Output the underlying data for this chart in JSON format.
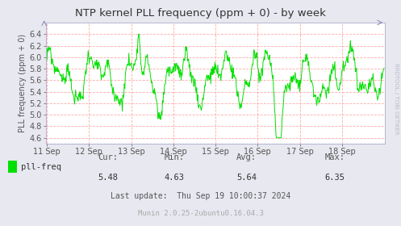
{
  "title": "NTP kernel PLL frequency (ppm + 0) - by week",
  "ylabel": "PLL frequency (ppm + 0)",
  "ylim": [
    4.5,
    6.6
  ],
  "yticks": [
    4.6,
    4.8,
    5.0,
    5.2,
    5.4,
    5.6,
    5.8,
    6.0,
    6.2,
    6.4
  ],
  "bg_color": "#e8e8f0",
  "plot_bg_color": "#ffffff",
  "line_color": "#00e000",
  "grid_color": "#ffaaaa",
  "legend_label": "pll-freq",
  "cur": "5.48",
  "min": "4.63",
  "avg": "5.64",
  "max": "6.35",
  "last_update": "Thu Sep 19 10:00:37 2024",
  "munin_version": "Munin 2.0.25-2ubuntu0.16.04.3",
  "watermark": "RRDTOOL / TOBI OETIKER",
  "x_labels": [
    "11 Sep",
    "12 Sep",
    "13 Sep",
    "14 Sep",
    "15 Sep",
    "16 Sep",
    "17 Sep",
    "18 Sep"
  ],
  "num_points": 672
}
